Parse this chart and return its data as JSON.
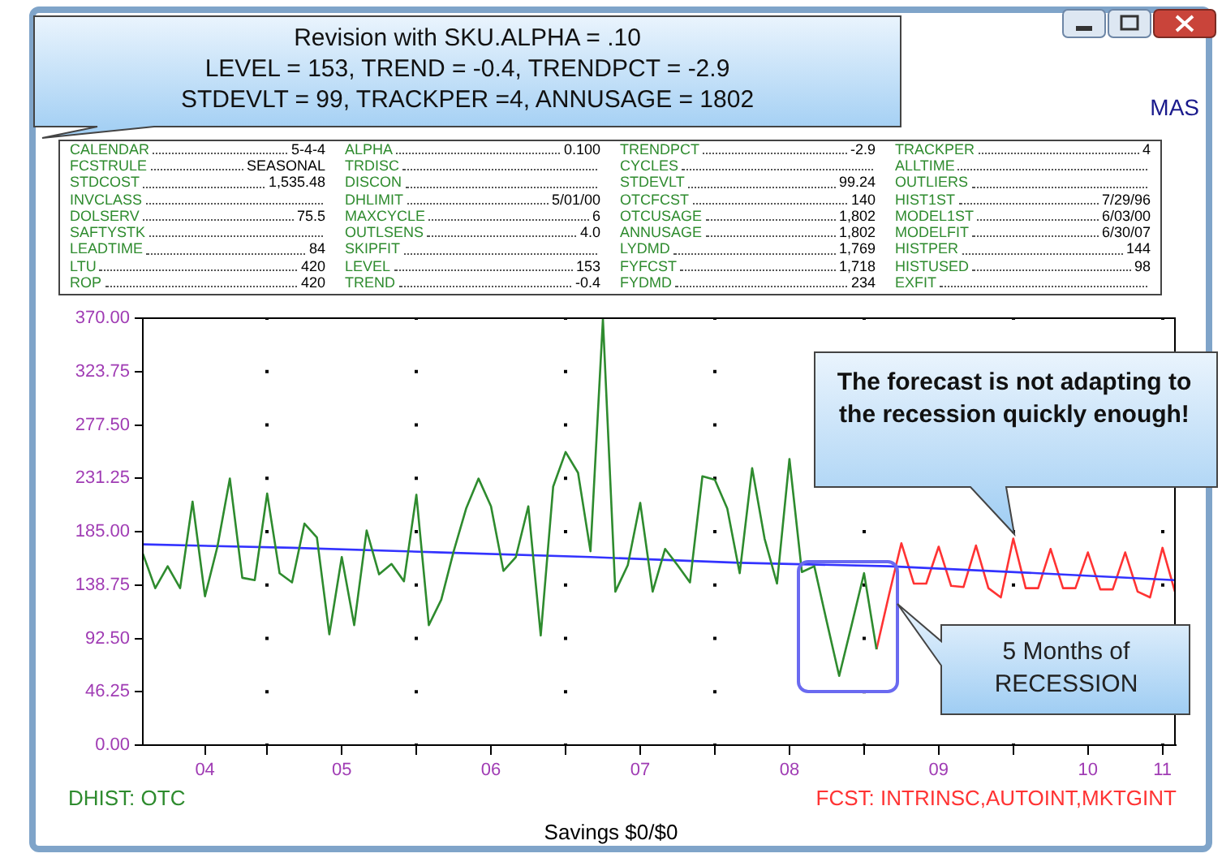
{
  "chart_data": {
    "type": "line",
    "xlabel": "Savings $0/$0",
    "xlim": [
      "2004-03",
      "2011-02"
    ],
    "xticks": [
      {
        "value": "2004-08",
        "label": "04"
      },
      {
        "value": "2005-01",
        "label": null
      },
      {
        "value": "2005-07",
        "label": "05"
      },
      {
        "value": "2006-01",
        "label": null
      },
      {
        "value": "2006-07",
        "label": "06"
      },
      {
        "value": "2007-01",
        "label": null
      },
      {
        "value": "2007-07",
        "label": "07"
      },
      {
        "value": "2008-01",
        "label": null
      },
      {
        "value": "2008-07",
        "label": "08"
      },
      {
        "value": "2009-01",
        "label": null
      },
      {
        "value": "2009-07",
        "label": "09"
      },
      {
        "value": "2010-01",
        "label": null
      },
      {
        "value": "2010-07",
        "label": "10"
      },
      {
        "value": "2011-01",
        "label": "11"
      }
    ],
    "ylim": [
      0,
      370
    ],
    "yticks": [
      {
        "value": 0,
        "label": "0.00"
      },
      {
        "value": 46.25,
        "label": "46.25"
      },
      {
        "value": 92.5,
        "label": "92.50"
      },
      {
        "value": 138.75,
        "label": "138.75"
      },
      {
        "value": 185,
        "label": "185.00"
      },
      {
        "value": 231.25,
        "label": "231.25"
      },
      {
        "value": 277.5,
        "label": "277.50"
      },
      {
        "value": 323.75,
        "label": "323.75"
      },
      {
        "value": 370,
        "label": "370.00"
      }
    ],
    "grid": true,
    "legend": "bottom",
    "series": [
      {
        "name": "DHIST: OTC",
        "color": "#2e8b2e",
        "x": [
          "2004-03",
          "2004-04",
          "2004-05",
          "2004-06",
          "2004-07",
          "2004-08",
          "2004-09",
          "2004-10",
          "2004-11",
          "2004-12",
          "2005-01",
          "2005-02",
          "2005-03",
          "2005-04",
          "2005-05",
          "2005-06",
          "2005-07",
          "2005-08",
          "2005-09",
          "2005-10",
          "2005-11",
          "2005-12",
          "2006-01",
          "2006-02",
          "2006-03",
          "2006-04",
          "2006-05",
          "2006-06",
          "2006-07",
          "2006-08",
          "2006-09",
          "2006-10",
          "2006-11",
          "2006-12",
          "2007-01",
          "2007-02",
          "2007-03",
          "2007-04",
          "2007-05",
          "2007-06",
          "2007-07",
          "2007-08",
          "2007-09",
          "2007-10",
          "2007-11",
          "2007-12",
          "2008-01",
          "2008-02",
          "2008-03",
          "2008-04",
          "2008-05",
          "2008-06",
          "2008-07",
          "2008-08",
          "2008-09",
          "2008-10",
          "2008-11",
          "2008-12",
          "2009-01",
          "2009-02"
        ],
        "values": [
          166,
          136,
          155,
          136,
          211,
          129,
          172,
          231,
          145,
          143,
          218,
          149,
          141,
          192,
          180,
          96,
          163,
          104,
          186,
          148,
          157,
          142,
          217,
          104,
          126,
          168,
          205,
          231,
          207,
          151,
          163,
          207,
          95,
          224,
          254,
          236,
          168,
          369,
          133,
          156,
          210,
          133,
          170,
          156,
          141,
          233,
          230,
          205,
          149,
          240,
          179,
          140,
          248,
          150,
          155,
          107,
          60,
          104,
          149,
          83
        ]
      },
      {
        "color": "#3333ff",
        "x": [
          "2004-03",
          "2005-03",
          "2006-03",
          "2007-03",
          "2008-03",
          "2009-03",
          "2010-03",
          "2011-02"
        ],
        "values": [
          174,
          171,
          167,
          163,
          158,
          155,
          149,
          143
        ]
      },
      {
        "name": "FCST: INTRINSC,AUTOINT,MKTGINT",
        "color": "#ff3333",
        "x": [
          "2009-02",
          "2009-03",
          "2009-04",
          "2009-05",
          "2009-06",
          "2009-07",
          "2009-08",
          "2009-09",
          "2009-10",
          "2009-11",
          "2009-12",
          "2010-01",
          "2010-02",
          "2010-03",
          "2010-04",
          "2010-05",
          "2010-06",
          "2010-07",
          "2010-08",
          "2010-09",
          "2010-10",
          "2010-11",
          "2010-12",
          "2011-01",
          "2011-02"
        ],
        "values": [
          83,
          130,
          175,
          140,
          140,
          172,
          138,
          137,
          173,
          136,
          128,
          179,
          136,
          136,
          170,
          136,
          136,
          167,
          135,
          135,
          167,
          133,
          128,
          171,
          133
        ]
      }
    ],
    "annotations": [
      "Revision with SKU.ALPHA = .10\nLEVEL = 153, TREND = -0.4, TRENDPCT = -2.9\nSTDEVLT = 99, TRACKPER =4, ANNUSAGE = 1802",
      "MAS",
      "CALENDAR 5-4-4",
      "FCSTRULE SEASONAL",
      "STDCOST 1,535.48",
      "INVCLASS",
      "DOLSERV 75.5",
      "SAFTYSTK",
      "LEADTIME 84",
      "LTU 420",
      "ROP 420",
      "ALPHA 0.100",
      "TRDISC",
      "DISCON",
      "DHLIMIT 5/01/00",
      "MAXCYCLE 6",
      "OUTLSENS 4.0",
      "SKIPFIT",
      "LEVEL 153",
      "TREND -0.4",
      "TRENDPCT -2.9",
      "CYCLES",
      "STDEVLT 99.24",
      "OTCFCST 140",
      "OTCUSAGE 1,802",
      "ANNUSAGE 1,802",
      "LYDMD 1,769",
      "FYFCST 1,718",
      "FYDMD 234",
      "TRACKPER 4",
      "ALLTIME",
      "OUTLIERS",
      "HIST1ST 7/29/96",
      "MODEL1ST 6/03/00",
      "MODELFIT 6/30/07",
      "HISTPER 144",
      "HISTUSED 98",
      "EXFIT",
      "The forecast is not adapting to the recession quickly enough!",
      "5 Months of\nRECESSION"
    ]
  }
}
